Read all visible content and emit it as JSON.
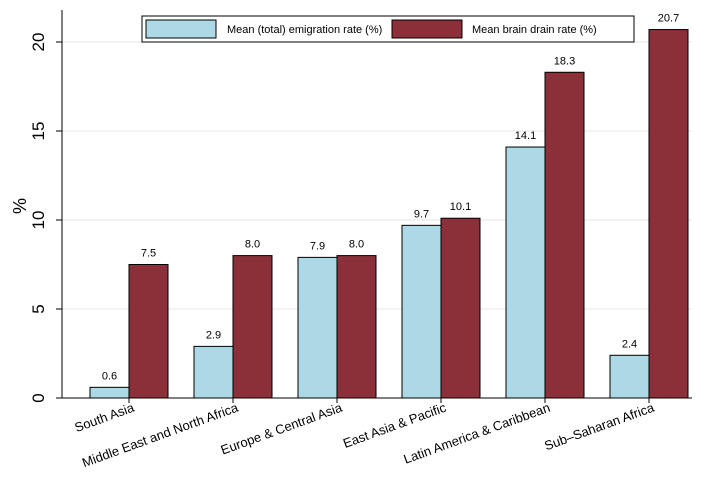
{
  "chart_data": {
    "type": "bar",
    "title": "",
    "xlabel": "",
    "ylabel": "%",
    "ylim": [
      0,
      22
    ],
    "yticks": [
      0,
      5,
      10,
      15,
      20
    ],
    "grid": true,
    "legend_position": "top",
    "categories": [
      "South Asia",
      "Middle East and North Africa",
      "Europe & Central Asia",
      "East Asia & Pacific",
      "Latin America & Caribbean",
      "Sub–Saharan Africa"
    ],
    "series": [
      {
        "name": "Mean (total) emigration rate (%)",
        "color": "#ADD8E6",
        "values": [
          0.6,
          2.9,
          7.9,
          9.7,
          14.1,
          2.4
        ],
        "labels": [
          "0.6",
          "2.9",
          "7.9",
          "9.7",
          "14.1",
          "2.4"
        ]
      },
      {
        "name": "Mean brain drain rate (%)",
        "color": "#8B3038",
        "values": [
          7.5,
          8.0,
          8.0,
          10.1,
          18.3,
          20.7
        ],
        "labels": [
          "7.5",
          "8.0",
          "8.0",
          "10.1",
          "18.3",
          "20.7"
        ]
      }
    ]
  }
}
